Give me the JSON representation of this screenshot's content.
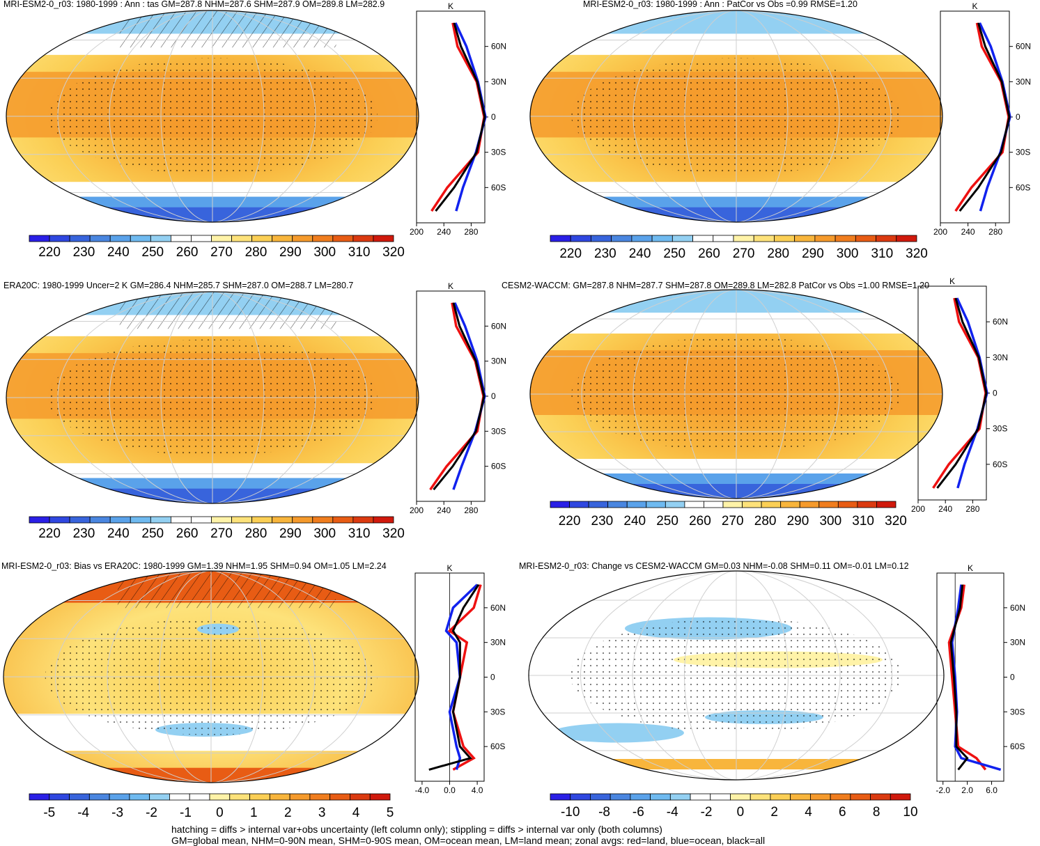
{
  "colors": {
    "warm_scale": [
      "#2a1fe6",
      "#2f47e0",
      "#3864dc",
      "#4a86e0",
      "#5aa2ea",
      "#6fbaf0",
      "#93d0f2",
      "#ffffff",
      "#ffffff",
      "#fff3a8",
      "#fde27a",
      "#fbcf55",
      "#f8b53c",
      "#f59a2c",
      "#f07d1e",
      "#e85c14",
      "#db3a10",
      "#d0190c"
    ],
    "diff_scale": [
      "#2a1fe6",
      "#2f47e0",
      "#3864dc",
      "#4a86e0",
      "#5aa2ea",
      "#6fbaf0",
      "#93d0f2",
      "#ffffff",
      "#ffffff",
      "#fff3a8",
      "#fde27a",
      "#fbcf55",
      "#f8b53c",
      "#f59a2c",
      "#f07d1e",
      "#e85c14",
      "#db3a10",
      "#d0190c"
    ],
    "land_line": "#ee1111",
    "ocean_line": "#1122ee",
    "all_line": "#000000"
  },
  "panels": [
    {
      "id": "model-annual",
      "title": "MRI-ESM2-0_r03: 1980-1999 : Ann : tas GM=287.8 NHM=287.6 SHM=287.9 OM=289.8 LM=282.9",
      "colorbar": [
        "220",
        "230",
        "240",
        "250",
        "260",
        "270",
        "280",
        "290",
        "300",
        "310",
        "320"
      ],
      "zonal_xticks": [
        "200",
        "240",
        "280"
      ],
      "zonal_units": "K",
      "scale": "warm",
      "hatch": "north"
    },
    {
      "id": "patcor",
      "title": "MRI-ESM2-0_r03: 1980-1999 : Ann : PatCor vs Obs =0.99 RMSE=1.20",
      "colorbar": [
        "220",
        "230",
        "240",
        "250",
        "260",
        "270",
        "280",
        "290",
        "300",
        "310",
        "320"
      ],
      "zonal_xticks": [
        "200",
        "240",
        "280"
      ],
      "zonal_units": "K",
      "scale": "warm",
      "hatch": "none"
    },
    {
      "id": "era20c",
      "title": "ERA20C: 1980-1999 Uncer=2 K GM=286.4 NHM=285.7 SHM=287.0 OM=288.7 LM=280.7",
      "colorbar": [
        "220",
        "230",
        "240",
        "250",
        "260",
        "270",
        "280",
        "290",
        "300",
        "310",
        "320"
      ],
      "zonal_xticks": [
        "200",
        "240",
        "280"
      ],
      "zonal_units": "K",
      "scale": "warm",
      "hatch": "north"
    },
    {
      "id": "cesm2",
      "title": "CESM2-WACCM: GM=287.8 NHM=287.7 SHM=287.8 OM=289.8 LM=282.8 PatCor vs Obs =1.00 RMSE=1.20",
      "colorbar": [
        "220",
        "230",
        "240",
        "250",
        "260",
        "270",
        "280",
        "290",
        "300",
        "310",
        "320"
      ],
      "zonal_xticks": [
        "200",
        "240",
        "280"
      ],
      "zonal_units": "K",
      "scale": "warm",
      "hatch": "none"
    },
    {
      "id": "bias",
      "title": "MRI-ESM2-0_r03: Bias vs ERA20C: 1980-1999 GM=1.39 NHM=1.95 SHM=0.94 OM=1.05 LM=2.24",
      "colorbar": [
        "-5",
        "-4",
        "-3",
        "-2",
        "-1",
        "0",
        "1",
        "2",
        "3",
        "4",
        "5"
      ],
      "zonal_xticks": [
        "-4.0",
        "0.0",
        "4.0"
      ],
      "zonal_units": "K",
      "scale": "diff",
      "hatch": "north"
    },
    {
      "id": "change",
      "title": "MRI-ESM2-0_r03: Change vs CESM2-WACCM GM=0.03 NHM=-0.08 SHM=0.11 OM=-0.01 LM=0.12",
      "colorbar": [
        "-10",
        "-8",
        "-6",
        "-4",
        "-2",
        "0",
        "2",
        "4",
        "6",
        "8",
        "10"
      ],
      "zonal_xticks": [
        "-2.0",
        "2.0",
        "6.0"
      ],
      "zonal_units": "K",
      "scale": "diff",
      "hatch": "none"
    }
  ],
  "lat_labels": [
    "60N",
    "30N",
    "0",
    "30S",
    "60S"
  ],
  "footer": {
    "line1": "hatching = diffs > internal var+obs uncertainty (left column only); stippling = diffs > internal var only (both columns)",
    "line2": "GM=global mean, NHM=0-90N mean, SHM=0-90S mean, OM=ocean mean, LM=land mean; zonal avgs: red=land, blue=ocean, black=all"
  },
  "chart_data": [
    {
      "type": "line",
      "title": "MRI-ESM2-0_r03: 1980-1999 : Ann : tas GM=287.8 NHM=287.6 SHM=287.9 OM=289.8 LM=282.9",
      "xlabel": "K",
      "ylabel": "",
      "y": [
        80,
        60,
        30,
        0,
        -30,
        -60,
        -80
      ],
      "xlim": [
        200,
        300
      ],
      "series": [
        {
          "name": "land",
          "values": [
            253,
            260,
            288,
            299,
            290,
            245,
            222
          ]
        },
        {
          "name": "ocean",
          "values": [
            257,
            273,
            290,
            301,
            287,
            268,
            258
          ]
        },
        {
          "name": "all",
          "values": [
            255,
            265,
            289,
            300,
            288,
            255,
            228
          ]
        }
      ]
    },
    {
      "type": "line",
      "title": "MRI-ESM2-0_r03: 1980-1999 : Ann : PatCor vs Obs =0.99 RMSE=1.20",
      "xlabel": "K",
      "ylabel": "",
      "y": [
        80,
        60,
        30,
        0,
        -30,
        -60,
        -80
      ],
      "xlim": [
        200,
        300
      ],
      "series": [
        {
          "name": "land",
          "values": [
            253,
            260,
            288,
            299,
            290,
            245,
            222
          ]
        },
        {
          "name": "ocean",
          "values": [
            257,
            273,
            290,
            301,
            287,
            268,
            258
          ]
        },
        {
          "name": "all",
          "values": [
            255,
            265,
            289,
            300,
            288,
            255,
            228
          ]
        }
      ]
    },
    {
      "type": "line",
      "title": "ERA20C: 1980-1999 Uncer=2 K GM=286.4 NHM=285.7 SHM=287.0 OM=288.7 LM=280.7",
      "xlabel": "K",
      "ylabel": "",
      "y": [
        80,
        60,
        30,
        0,
        -30,
        -60,
        -80
      ],
      "xlim": [
        200,
        300
      ],
      "series": [
        {
          "name": "land",
          "values": [
            252,
            258,
            286,
            298,
            289,
            244,
            220
          ]
        },
        {
          "name": "ocean",
          "values": [
            256,
            271,
            289,
            300,
            286,
            266,
            254
          ]
        },
        {
          "name": "all",
          "values": [
            254,
            263,
            287,
            299,
            287,
            253,
            225
          ]
        }
      ]
    },
    {
      "type": "line",
      "title": "CESM2-WACCM: GM=287.8 NHM=287.7 SHM=287.8 OM=289.8 LM=282.8 PatCor vs Obs =1.00 RMSE=1.20",
      "xlabel": "K",
      "ylabel": "",
      "y": [
        80,
        60,
        30,
        0,
        -30,
        -60,
        -80
      ],
      "xlim": [
        200,
        300
      ],
      "series": [
        {
          "name": "land",
          "values": [
            253,
            260,
            288,
            299,
            290,
            245,
            222
          ]
        },
        {
          "name": "ocean",
          "values": [
            257,
            273,
            290,
            301,
            287,
            268,
            258
          ]
        },
        {
          "name": "all",
          "values": [
            255,
            265,
            289,
            300,
            288,
            255,
            228
          ]
        }
      ]
    },
    {
      "type": "line",
      "title": "MRI-ESM2-0_r03: Bias vs ERA20C: 1980-1999 GM=1.39 NHM=1.95 SHM=0.94 OM=1.05 LM=2.24",
      "xlabel": "K",
      "ylabel": "",
      "y": [
        80,
        60,
        40,
        30,
        0,
        -30,
        -60,
        -70,
        -80
      ],
      "xlim": [
        -5,
        5
      ],
      "series": [
        {
          "name": "land",
          "values": [
            4.5,
            3.5,
            0.0,
            2.5,
            1.5,
            0.5,
            2.0,
            3.5,
            0.5
          ]
        },
        {
          "name": "ocean",
          "values": [
            4.0,
            0.5,
            -0.5,
            1.0,
            1.5,
            0.0,
            1.0,
            1.5,
            1.0
          ]
        },
        {
          "name": "all",
          "values": [
            4.2,
            2.0,
            0.5,
            1.5,
            1.5,
            0.5,
            1.5,
            3.0,
            -3.0
          ]
        }
      ]
    },
    {
      "type": "line",
      "title": "MRI-ESM2-0_r03: Change vs CESM2-WACCM GM=0.03 NHM=-0.08 SHM=0.11 OM=-0.01 LM=0.12",
      "xlabel": "K",
      "ylabel": "",
      "y": [
        80,
        60,
        30,
        0,
        -30,
        -60,
        -70,
        -80
      ],
      "xlim": [
        -3,
        8
      ],
      "series": [
        {
          "name": "land",
          "values": [
            1.5,
            1.0,
            -1.0,
            -0.5,
            0.0,
            0.5,
            3.5,
            5.0
          ]
        },
        {
          "name": "ocean",
          "values": [
            1.0,
            0.5,
            -0.5,
            0.0,
            0.3,
            0.0,
            1.0,
            7.5
          ]
        },
        {
          "name": "all",
          "values": [
            1.2,
            0.8,
            -0.7,
            -0.2,
            0.2,
            0.2,
            2.0,
            0.5
          ]
        }
      ]
    }
  ]
}
